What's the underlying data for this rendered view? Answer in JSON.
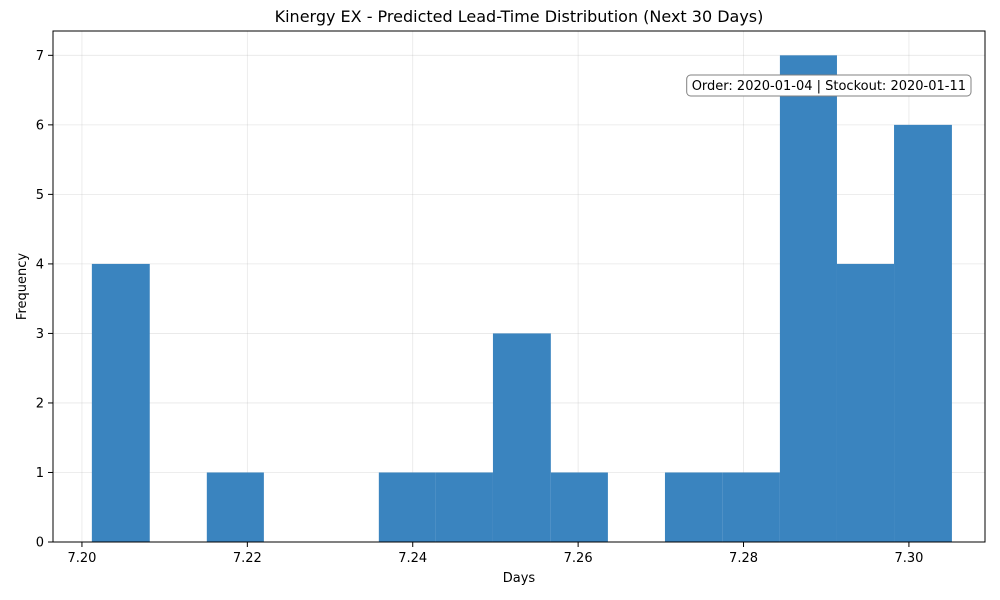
{
  "chart_data": {
    "type": "bar",
    "title": "Kinergy EX - Predicted Lead-Time Distribution (Next 30 Days)",
    "xlabel": "Days",
    "ylabel": "Frequency",
    "xlim": [
      7.1965,
      7.3092
    ],
    "ylim": [
      0,
      7.35
    ],
    "xticks": [
      7.2,
      7.22,
      7.24,
      7.26,
      7.28,
      7.3
    ],
    "xtick_labels": [
      "7.20",
      "7.22",
      "7.24",
      "7.26",
      "7.28",
      "7.30"
    ],
    "yticks": [
      0,
      1,
      2,
      3,
      4,
      5,
      6,
      7
    ],
    "ytick_labels": [
      "0",
      "1",
      "2",
      "3",
      "4",
      "5",
      "6",
      "7"
    ],
    "grid": true,
    "bar_color": "#3682be",
    "bins": [
      {
        "x0": 7.2012,
        "x1": 7.2082,
        "count": 4
      },
      {
        "x0": 7.2082,
        "x1": 7.2151,
        "count": 0
      },
      {
        "x0": 7.2151,
        "x1": 7.222,
        "count": 1
      },
      {
        "x0": 7.222,
        "x1": 7.229,
        "count": 0
      },
      {
        "x0": 7.229,
        "x1": 7.2359,
        "count": 0
      },
      {
        "x0": 7.2359,
        "x1": 7.2428,
        "count": 1
      },
      {
        "x0": 7.2428,
        "x1": 7.2497,
        "count": 1
      },
      {
        "x0": 7.2497,
        "x1": 7.2567,
        "count": 3
      },
      {
        "x0": 7.2567,
        "x1": 7.2636,
        "count": 1
      },
      {
        "x0": 7.2636,
        "x1": 7.2705,
        "count": 0
      },
      {
        "x0": 7.2705,
        "x1": 7.2775,
        "count": 1
      },
      {
        "x0": 7.2775,
        "x1": 7.2844,
        "count": 1
      },
      {
        "x0": 7.2844,
        "x1": 7.2913,
        "count": 7
      },
      {
        "x0": 7.2913,
        "x1": 7.2982,
        "count": 4
      },
      {
        "x0": 7.2982,
        "x1": 7.3052,
        "count": 6
      }
    ],
    "annotation": "Order: 2020-01-04 | Stockout: 2020-01-11",
    "annotation_position": "top-right"
  }
}
